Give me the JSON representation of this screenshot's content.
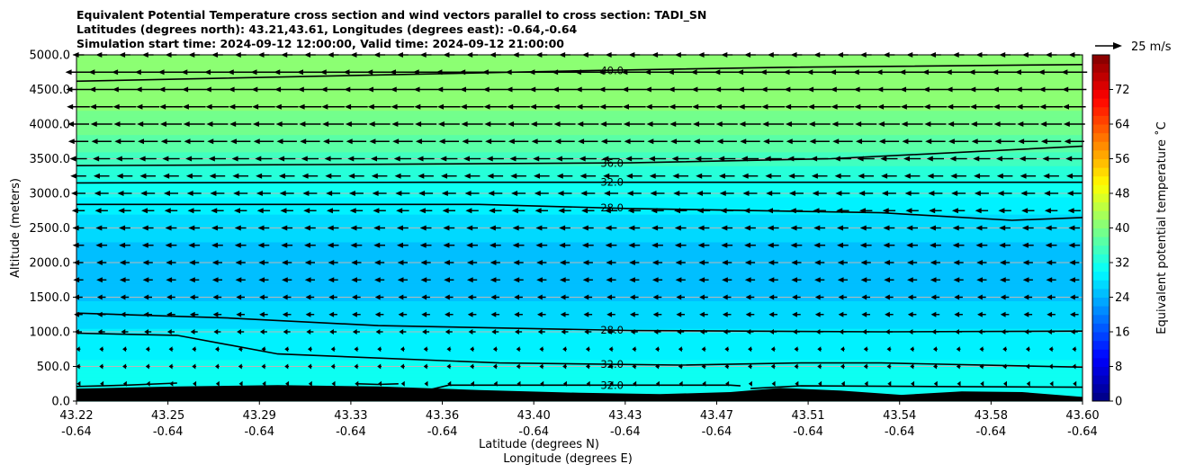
{
  "chart_data": {
    "type": "heatmap",
    "title_lines": [
      "Equivalent Potential Temperature cross section and wind vectors parallel to cross section: TADI_SN",
      "Latitudes (degrees north): 43.21,43.61, Longitudes (degrees east): -0.64,-0.64",
      "Simulation start time: 2024-09-12 12:00:00, Valid time: 2024-09-12 21:00:00"
    ],
    "ylabel": "Altitude (meters)",
    "xlabel_1": "Latitude (degrees N)",
    "xlabel_2": "Longitude (degrees E)",
    "ylim": [
      0,
      5000
    ],
    "yticks": [
      0,
      500,
      1000,
      1500,
      2000,
      2500,
      3000,
      3500,
      4000,
      4500,
      5000
    ],
    "ytick_labels": [
      "0.0",
      "500.0",
      "1000.0",
      "1500.0",
      "2000.0",
      "2500.0",
      "3000.0",
      "3500.0",
      "4000.0",
      "4500.0",
      "5000.0"
    ],
    "xticks": [
      {
        "lat": "43.22",
        "lon": "-0.64"
      },
      {
        "lat": "43.25",
        "lon": "-0.64"
      },
      {
        "lat": "43.29",
        "lon": "-0.64"
      },
      {
        "lat": "43.33",
        "lon": "-0.64"
      },
      {
        "lat": "43.36",
        "lon": "-0.64"
      },
      {
        "lat": "43.40",
        "lon": "-0.64"
      },
      {
        "lat": "43.43",
        "lon": "-0.64"
      },
      {
        "lat": "43.47",
        "lon": "-0.64"
      },
      {
        "lat": "43.51",
        "lon": "-0.64"
      },
      {
        "lat": "43.54",
        "lon": "-0.64"
      },
      {
        "lat": "43.58",
        "lon": "-0.64"
      },
      {
        "lat": "43.60",
        "lon": "-0.64"
      }
    ],
    "grid": "horizontal",
    "colorbar": {
      "label": "Equivalent potential temperature $^\\circ$C",
      "range": [
        0,
        80
      ],
      "ticks": [
        "0",
        "8",
        "16",
        "24",
        "32",
        "40",
        "48",
        "56",
        "64",
        "72"
      ],
      "tick_values": [
        0,
        8,
        16,
        24,
        32,
        40,
        48,
        56,
        64,
        72
      ]
    },
    "quiver_key": "25 m/s",
    "field_profile": [
      {
        "altitude": 0,
        "theta_e": 31
      },
      {
        "altitude": 300,
        "theta_e": 31
      },
      {
        "altitude": 600,
        "theta_e": 30
      },
      {
        "altitude": 950,
        "theta_e": 28.5
      },
      {
        "altitude": 1300,
        "theta_e": 27
      },
      {
        "altitude": 1600,
        "theta_e": 25
      },
      {
        "altitude": 1900,
        "theta_e": 24.5
      },
      {
        "altitude": 2300,
        "theta_e": 26
      },
      {
        "altitude": 2700,
        "theta_e": 28
      },
      {
        "altitude": 3000,
        "theta_e": 30.5
      },
      {
        "altitude": 3300,
        "theta_e": 33
      },
      {
        "altitude": 3600,
        "theta_e": 36
      },
      {
        "altitude": 3900,
        "theta_e": 38.5
      },
      {
        "altitude": 4300,
        "theta_e": 40.5
      },
      {
        "altitude": 5000,
        "theta_e": 42
      }
    ],
    "contours": [
      {
        "label": "40.0",
        "points": [
          [
            0,
            4620
          ],
          [
            0.27,
            4700
          ],
          [
            0.5,
            4770
          ],
          [
            0.7,
            4820
          ],
          [
            1,
            4860
          ]
        ]
      },
      {
        "label": "36.0",
        "points": [
          [
            0,
            3400
          ],
          [
            0.3,
            3420
          ],
          [
            0.55,
            3440
          ],
          [
            0.75,
            3500
          ],
          [
            1,
            3680
          ]
        ]
      },
      {
        "label": "32.0",
        "points": [
          [
            0,
            3150
          ],
          [
            0.35,
            3160
          ],
          [
            0.55,
            3160
          ],
          [
            1,
            3160
          ]
        ]
      },
      {
        "label": "28.0",
        "points": [
          [
            0,
            2840
          ],
          [
            0.4,
            2840
          ],
          [
            0.55,
            2780
          ],
          [
            0.8,
            2720
          ],
          [
            0.93,
            2610
          ],
          [
            1,
            2650
          ]
        ]
      },
      {
        "label": "28.0",
        "points": [
          [
            0,
            1270
          ],
          [
            0.15,
            1200
          ],
          [
            0.3,
            1090
          ],
          [
            0.55,
            1020
          ],
          [
            0.8,
            1000
          ],
          [
            1,
            1010
          ]
        ]
      },
      {
        "label": "32.0",
        "points": [
          [
            0,
            980
          ],
          [
            0.1,
            950
          ],
          [
            0.2,
            680
          ],
          [
            0.42,
            550
          ],
          [
            0.6,
            520
          ],
          [
            0.72,
            550
          ],
          [
            0.8,
            550
          ],
          [
            1,
            490
          ]
        ]
      },
      {
        "label": "32.0",
        "points": [
          [
            0,
            210
          ],
          [
            0.05,
            230
          ],
          [
            0.1,
            260
          ]
        ]
      },
      {
        "label": "32.0",
        "points": [
          [
            0.28,
            250
          ],
          [
            0.3,
            240
          ],
          [
            0.32,
            250
          ]
        ]
      },
      {
        "label": "32.0",
        "points": [
          [
            0.35,
            160
          ],
          [
            0.37,
            230
          ],
          [
            0.55,
            230
          ],
          [
            0.65,
            230
          ],
          [
            0.66,
            220
          ]
        ]
      },
      {
        "label": "32.0",
        "points": [
          [
            0.67,
            180
          ],
          [
            0.72,
            220
          ],
          [
            0.85,
            210
          ],
          [
            1,
            200
          ]
        ]
      }
    ],
    "terrain_height": [
      {
        "x": 0,
        "altitude": 180
      },
      {
        "x": 0.1,
        "altitude": 210
      },
      {
        "x": 0.2,
        "altitude": 230
      },
      {
        "x": 0.3,
        "altitude": 210
      },
      {
        "x": 0.4,
        "altitude": 160
      },
      {
        "x": 0.5,
        "altitude": 120
      },
      {
        "x": 0.58,
        "altitude": 100
      },
      {
        "x": 0.65,
        "altitude": 130
      },
      {
        "x": 0.7,
        "altitude": 190
      },
      {
        "x": 0.76,
        "altitude": 150
      },
      {
        "x": 0.82,
        "altitude": 90
      },
      {
        "x": 0.88,
        "altitude": 140
      },
      {
        "x": 0.94,
        "altitude": 130
      },
      {
        "x": 1,
        "altitude": 60
      }
    ],
    "wind_profile": [
      {
        "altitude": 250,
        "u": -1.0
      },
      {
        "altitude": 500,
        "u": -1.5
      },
      {
        "altitude": 750,
        "u": -1.5
      },
      {
        "altitude": 1000,
        "u": -2.5
      },
      {
        "altitude": 1250,
        "u": -3.0
      },
      {
        "altitude": 1500,
        "u": -3.0
      },
      {
        "altitude": 1750,
        "u": -3.5
      },
      {
        "altitude": 2000,
        "u": -3.5
      },
      {
        "altitude": 2250,
        "u": -4.0
      },
      {
        "altitude": 2500,
        "u": -4.0
      },
      {
        "altitude": 2750,
        "u": -4.5
      },
      {
        "altitude": 3000,
        "u": -5.0
      },
      {
        "altitude": 3250,
        "u": -5.5
      },
      {
        "altitude": 3500,
        "u": -6.0
      },
      {
        "altitude": 3750,
        "u": -7.0
      },
      {
        "altitude": 4000,
        "u": -7.5
      },
      {
        "altitude": 4250,
        "u": -8.0
      },
      {
        "altitude": 4500,
        "u": -8.5
      },
      {
        "altitude": 4750,
        "u": -9.0
      },
      {
        "altitude": 5000,
        "u": -4.0
      }
    ]
  }
}
